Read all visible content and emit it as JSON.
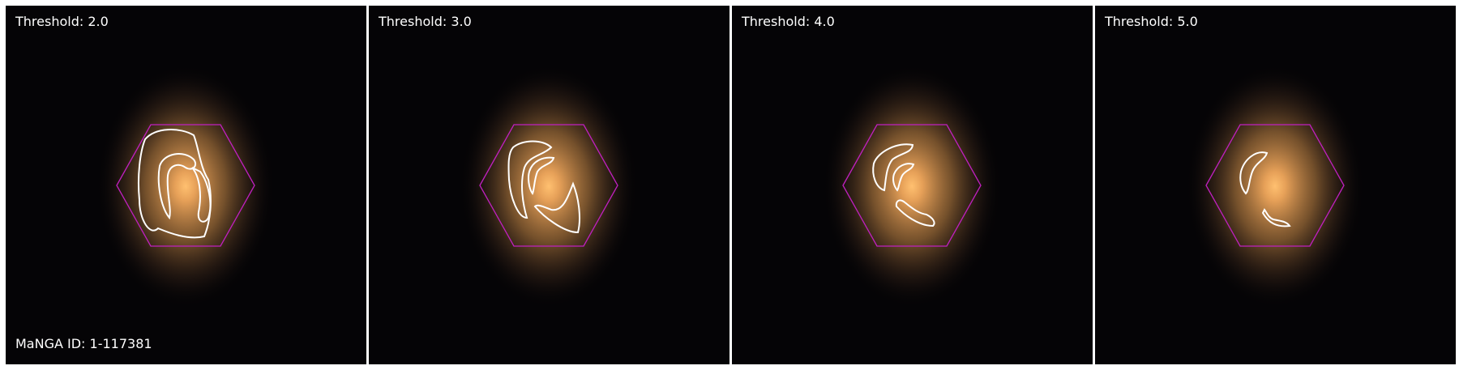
{
  "manga_id_label": "MaNGA ID: 1-117381",
  "colors": {
    "background": "#050406",
    "galaxy_core": "#f0b060",
    "galaxy_halo": "#8a6238",
    "hexagon": "#c020c0",
    "contour": "#ffffff",
    "text": "#ffffff"
  },
  "panels": [
    {
      "threshold_label": "Threshold: 2.0",
      "contours": [
        "outer-ring",
        "inner-spiral",
        "right-arm"
      ]
    },
    {
      "threshold_label": "Threshold: 3.0",
      "contours": [
        "left-arm",
        "inner-arc",
        "lower-right-arm"
      ]
    },
    {
      "threshold_label": "Threshold: 4.0",
      "contours": [
        "left-arc",
        "inner-arc",
        "lower-blob"
      ]
    },
    {
      "threshold_label": "Threshold: 5.0",
      "contours": [
        "left-arc",
        "lower-blob"
      ]
    }
  ]
}
